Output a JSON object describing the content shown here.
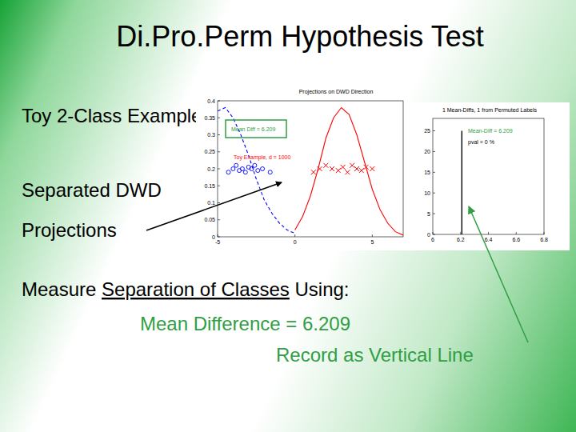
{
  "slide": {
    "title": "Di.Pro.Perm Hypothesis Test",
    "labels": [
      "Toy 2-Class Example",
      "Separated DWD",
      "Projections"
    ],
    "measure": {
      "before": "Measure ",
      "underlined": "Separation of Classes",
      "after": " Using:"
    },
    "statistic": "Mean Difference = 6.209",
    "note": "Record as Vertical Line"
  },
  "chart_data": [
    {
      "type": "line",
      "title": "Projections on DWD Direction",
      "annotations": [
        "Mean Diff = 6.209",
        "Toy Example, d = 1000"
      ],
      "xlim": [
        -5,
        7
      ],
      "xticks": [
        -5,
        0,
        5
      ],
      "ylim": [
        0,
        0.4
      ],
      "yticks": [
        0,
        0.05,
        0.1,
        0.15,
        0.2,
        0.25,
        0.3,
        0.35,
        0.4
      ],
      "series": [
        {
          "type": "line",
          "color": "#0000ff",
          "line_style": "dashed",
          "x": [
            -5,
            -4.5,
            -4,
            -3.5,
            -3,
            -2.5,
            -2,
            -1.5,
            -1,
            -0.5,
            0
          ],
          "values": [
            0.37,
            0.38,
            0.35,
            0.3,
            0.24,
            0.17,
            0.11,
            0.07,
            0.04,
            0.02,
            0.01
          ]
        },
        {
          "type": "line",
          "color": "#ff0000",
          "line_style": "solid",
          "x": [
            0,
            0.5,
            1,
            1.5,
            2,
            2.5,
            3,
            3.5,
            4,
            4.5,
            5,
            5.5,
            6,
            6.5,
            7
          ],
          "values": [
            0.02,
            0.06,
            0.12,
            0.2,
            0.29,
            0.35,
            0.38,
            0.36,
            0.3,
            0.22,
            0.14,
            0.08,
            0.04,
            0.015,
            0.005
          ]
        },
        {
          "type": "scatter",
          "color": "#0000ff",
          "marker": "circle",
          "x": [
            -4.3,
            -4.0,
            -3.8,
            -3.6,
            -3.4,
            -3.2,
            -3.0,
            -2.8,
            -2.6,
            -2.4,
            -2.1,
            -1.6
          ],
          "values": [
            0.19,
            0.2,
            0.21,
            0.195,
            0.2,
            0.19,
            0.205,
            0.2,
            0.21,
            0.195,
            0.2,
            0.19
          ]
        },
        {
          "type": "scatter",
          "color": "#ff0000",
          "marker": "cross",
          "x": [
            1.2,
            1.6,
            2.0,
            2.4,
            2.8,
            3.1,
            3.4,
            3.7,
            4.0,
            4.3,
            4.6,
            5.0
          ],
          "values": [
            0.19,
            0.2,
            0.21,
            0.2,
            0.195,
            0.205,
            0.19,
            0.21,
            0.2,
            0.195,
            0.205,
            0.2
          ]
        }
      ]
    },
    {
      "type": "line",
      "title": "1 Mean-Diffs, 1 from Permuted Labels",
      "annotations": [
        "Mean-Diff = 6.209",
        "pval = 0 %"
      ],
      "xlim": [
        6,
        6.8
      ],
      "xticks": [
        6,
        6.2,
        6.4,
        6.6,
        6.8
      ],
      "ylim": [
        0,
        28
      ],
      "yticks": [
        0,
        5,
        10,
        15,
        20,
        25
      ],
      "series": [
        {
          "type": "line",
          "color": "#000000",
          "line_style": "solid",
          "x": [
            6.209,
            6.209
          ],
          "values": [
            0,
            25
          ]
        }
      ]
    }
  ]
}
